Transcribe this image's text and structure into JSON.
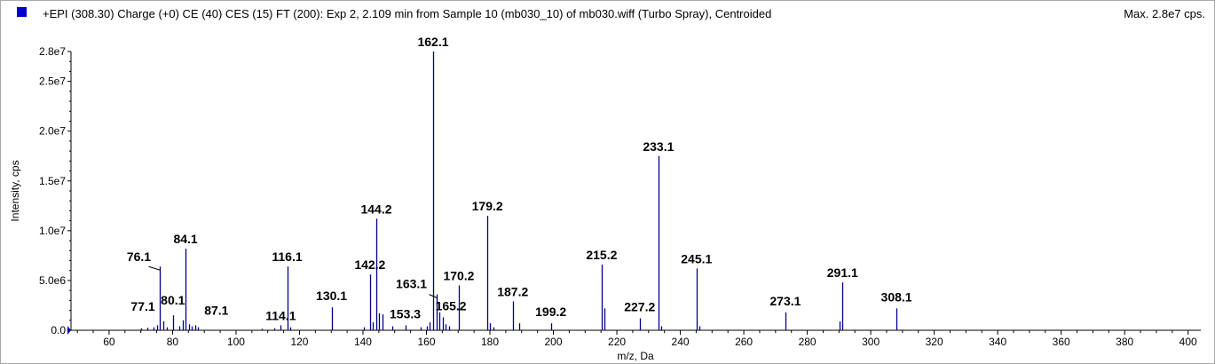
{
  "header": {
    "title": "+EPI (308.30) Charge (+0) CE (40) CES (15) FT (200): Exp 2, 2.109 min from Sample 10 (mb030_10) of mb030.wiff (Turbo Spray), Centroided",
    "max_label": "Max. 2.8e7 cps."
  },
  "colors": {
    "series": "#00008b",
    "marker": "#0000c8",
    "axis": "#000000"
  },
  "chart_data": {
    "type": "bar",
    "xlabel": "m/z, Da",
    "ylabel": "Intensity, cps",
    "xlim": [
      48,
      404
    ],
    "ylim": [
      0,
      28000000
    ],
    "x_ticks": [
      60,
      80,
      100,
      120,
      140,
      160,
      180,
      200,
      220,
      240,
      260,
      280,
      300,
      320,
      340,
      360,
      380,
      400
    ],
    "y_ticks": [
      {
        "value": 0,
        "label": "0.0"
      },
      {
        "value": 5000000,
        "label": "5.0e6"
      },
      {
        "value": 10000000,
        "label": "1.0e7"
      },
      {
        "value": 15000000,
        "label": "1.5e7"
      },
      {
        "value": 20000000,
        "label": "2.0e7"
      },
      {
        "value": 25000000,
        "label": "2.5e7"
      },
      {
        "value": 28000000,
        "label": "2.8e7"
      }
    ],
    "peaks": [
      {
        "mz": 70.1,
        "intensity": 200000
      },
      {
        "mz": 72.1,
        "intensity": 250000
      },
      {
        "mz": 74.1,
        "intensity": 300000
      },
      {
        "mz": 75.0,
        "intensity": 500000
      },
      {
        "mz": 76.1,
        "intensity": 6400000
      },
      {
        "mz": 77.1,
        "intensity": 900000
      },
      {
        "mz": 78.1,
        "intensity": 300000
      },
      {
        "mz": 80.1,
        "intensity": 1500000
      },
      {
        "mz": 82.1,
        "intensity": 400000
      },
      {
        "mz": 83.3,
        "intensity": 1000000
      },
      {
        "mz": 84.1,
        "intensity": 8200000
      },
      {
        "mz": 85.1,
        "intensity": 600000
      },
      {
        "mz": 86.1,
        "intensity": 400000
      },
      {
        "mz": 87.1,
        "intensity": 500000
      },
      {
        "mz": 88.1,
        "intensity": 300000
      },
      {
        "mz": 108.1,
        "intensity": 150000
      },
      {
        "mz": 112.1,
        "intensity": 200000
      },
      {
        "mz": 114.1,
        "intensity": 500000
      },
      {
        "mz": 116.1,
        "intensity": 6400000
      },
      {
        "mz": 117.1,
        "intensity": 300000
      },
      {
        "mz": 130.1,
        "intensity": 2300000
      },
      {
        "mz": 140.2,
        "intensity": 300000
      },
      {
        "mz": 142.2,
        "intensity": 5600000
      },
      {
        "mz": 143.1,
        "intensity": 800000
      },
      {
        "mz": 144.2,
        "intensity": 11200000
      },
      {
        "mz": 145.1,
        "intensity": 1700000
      },
      {
        "mz": 146.1,
        "intensity": 1600000
      },
      {
        "mz": 149.1,
        "intensity": 400000
      },
      {
        "mz": 153.3,
        "intensity": 500000
      },
      {
        "mz": 158.1,
        "intensity": 300000
      },
      {
        "mz": 160.1,
        "intensity": 400000
      },
      {
        "mz": 161.1,
        "intensity": 800000
      },
      {
        "mz": 162.1,
        "intensity": 28000000
      },
      {
        "mz": 163.1,
        "intensity": 3600000
      },
      {
        "mz": 164.1,
        "intensity": 1800000
      },
      {
        "mz": 165.2,
        "intensity": 1300000
      },
      {
        "mz": 166.1,
        "intensity": 600000
      },
      {
        "mz": 167.1,
        "intensity": 400000
      },
      {
        "mz": 170.2,
        "intensity": 4500000
      },
      {
        "mz": 179.2,
        "intensity": 11500000
      },
      {
        "mz": 180.1,
        "intensity": 700000
      },
      {
        "mz": 181.1,
        "intensity": 300000
      },
      {
        "mz": 187.2,
        "intensity": 2900000
      },
      {
        "mz": 189.1,
        "intensity": 700000
      },
      {
        "mz": 199.2,
        "intensity": 700000
      },
      {
        "mz": 215.2,
        "intensity": 6600000
      },
      {
        "mz": 216.2,
        "intensity": 2200000
      },
      {
        "mz": 227.2,
        "intensity": 1200000
      },
      {
        "mz": 233.1,
        "intensity": 17500000
      },
      {
        "mz": 234.1,
        "intensity": 400000
      },
      {
        "mz": 245.1,
        "intensity": 6200000
      },
      {
        "mz": 246.1,
        "intensity": 400000
      },
      {
        "mz": 273.1,
        "intensity": 1800000
      },
      {
        "mz": 290.1,
        "intensity": 900000
      },
      {
        "mz": 291.1,
        "intensity": 4800000
      },
      {
        "mz": 308.1,
        "intensity": 2200000
      }
    ],
    "peak_labels": [
      {
        "text": "76.1",
        "mz": 76.1
      },
      {
        "text": "77.1",
        "mz": 77.1
      },
      {
        "text": "80.1",
        "mz": 80.1
      },
      {
        "text": "84.1",
        "mz": 84.1
      },
      {
        "text": "87.1",
        "mz": 87.1
      },
      {
        "text": "114.1",
        "mz": 114.1
      },
      {
        "text": "116.1",
        "mz": 116.1
      },
      {
        "text": "130.1",
        "mz": 130.1
      },
      {
        "text": "142.2",
        "mz": 142.2
      },
      {
        "text": "144.2",
        "mz": 144.2
      },
      {
        "text": "153.3",
        "mz": 153.3
      },
      {
        "text": "162.1",
        "mz": 162.1
      },
      {
        "text": "163.1",
        "mz": 163.1
      },
      {
        "text": "165.2",
        "mz": 165.2
      },
      {
        "text": "170.2",
        "mz": 170.2
      },
      {
        "text": "179.2",
        "mz": 179.2
      },
      {
        "text": "187.2",
        "mz": 187.2
      },
      {
        "text": "199.2",
        "mz": 199.2
      },
      {
        "text": "215.2",
        "mz": 215.2
      },
      {
        "text": "227.2",
        "mz": 227.2
      },
      {
        "text": "233.1",
        "mz": 233.1
      },
      {
        "text": "245.1",
        "mz": 245.1
      },
      {
        "text": "273.1",
        "mz": 273.1
      },
      {
        "text": "291.1",
        "mz": 291.1
      },
      {
        "text": "308.1",
        "mz": 308.1
      }
    ]
  }
}
